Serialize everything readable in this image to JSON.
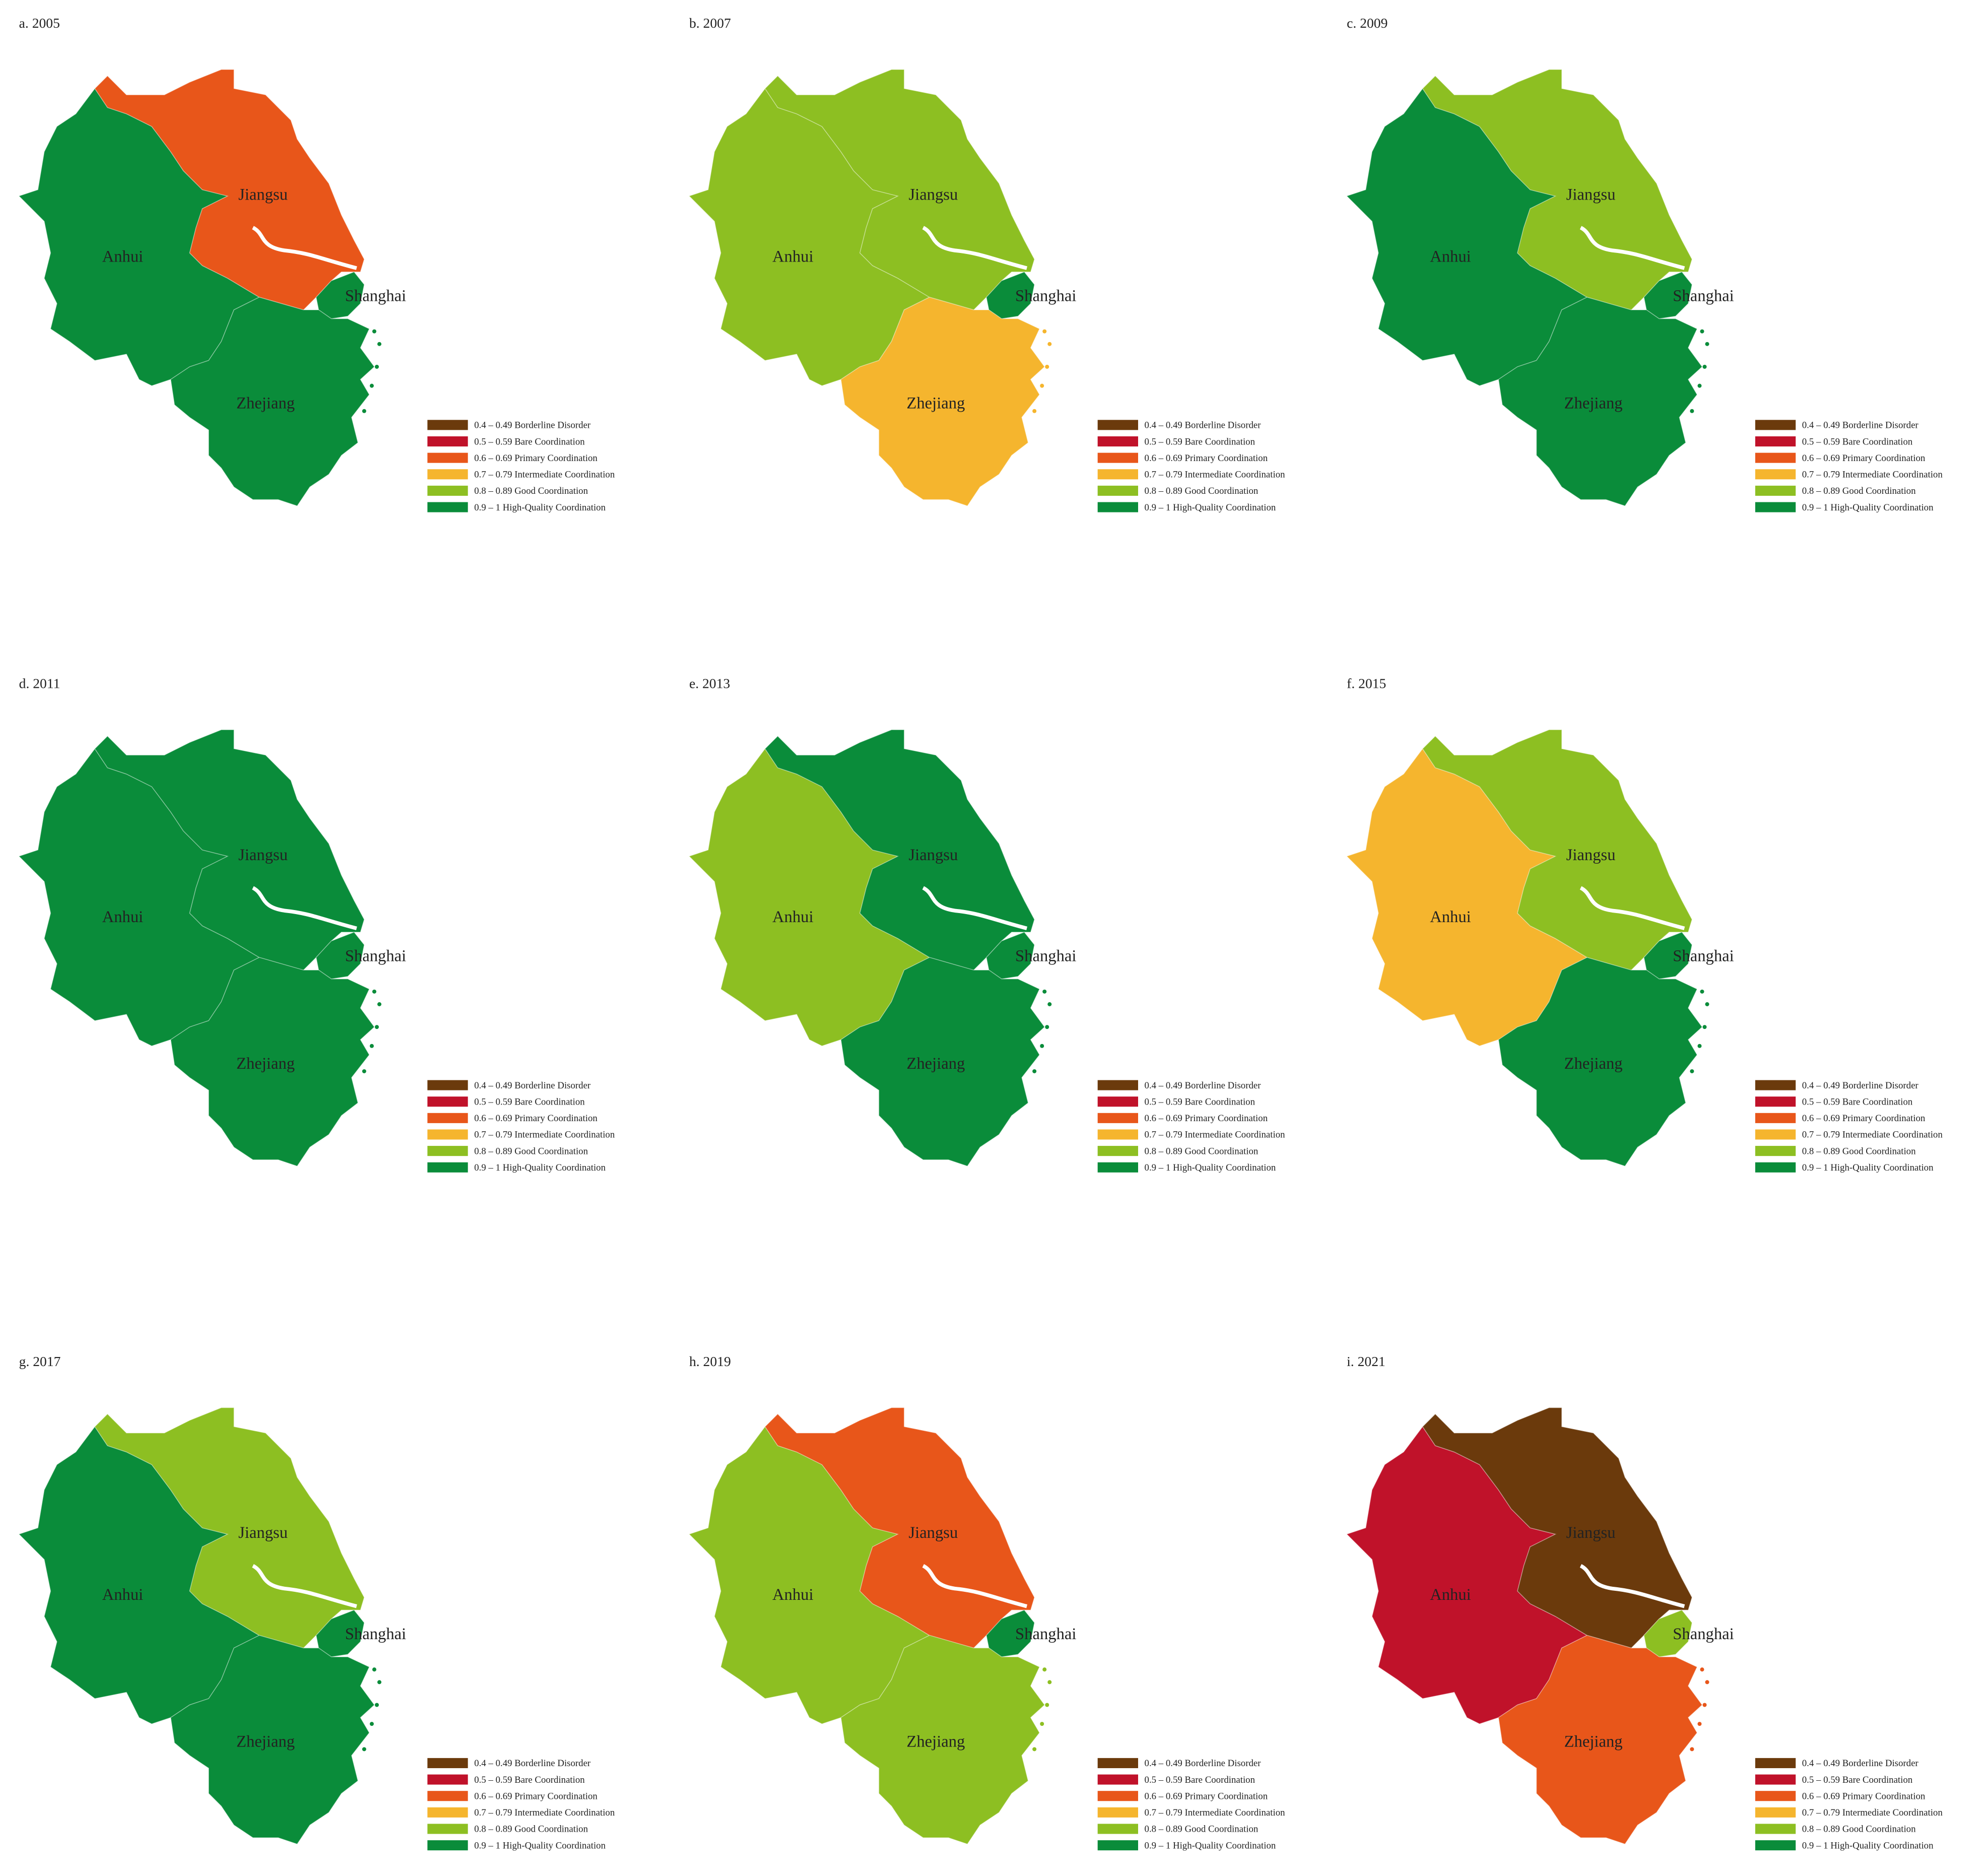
{
  "legend": [
    {
      "label": "0.4 – 0.49 Borderline Disorder",
      "color": "#6b3a0c"
    },
    {
      "label": "0.5 – 0.59 Bare Coordination",
      "color": "#c0122a"
    },
    {
      "label": "0.6 – 0.69 Primary Coordination",
      "color": "#e8561a"
    },
    {
      "label": "0.7 – 0.79 Intermediate Coordination",
      "color": "#f5b52e"
    },
    {
      "label": "0.8 – 0.89 Good Coordination",
      "color": "#8dbf22"
    },
    {
      "label": "0.9 – 1 High-Quality Coordination",
      "color": "#0a8c3a"
    }
  ],
  "panels": [
    {
      "title": "a. 2005",
      "regions": [
        {
          "name": "Anhui",
          "color": "#0a8c3a"
        },
        {
          "name": "Jiangsu",
          "color": "#e8561a"
        },
        {
          "name": "Shanghai",
          "color": "#0a8c3a"
        },
        {
          "name": "Zhejiang",
          "color": "#0a8c3a"
        }
      ]
    },
    {
      "title": "b. 2007",
      "regions": [
        {
          "name": "Anhui",
          "color": "#8dbf22"
        },
        {
          "name": "Jiangsu",
          "color": "#8dbf22"
        },
        {
          "name": "Shanghai",
          "color": "#0a8c3a"
        },
        {
          "name": "Zhejiang",
          "color": "#f5b52e"
        }
      ]
    },
    {
      "title": "c. 2009",
      "regions": [
        {
          "name": "Anhui",
          "color": "#0a8c3a"
        },
        {
          "name": "Jiangsu",
          "color": "#8dbf22"
        },
        {
          "name": "Shanghai",
          "color": "#0a8c3a"
        },
        {
          "name": "Zhejiang",
          "color": "#0a8c3a"
        }
      ]
    },
    {
      "title": "d. 2011",
      "regions": [
        {
          "name": "Anhui",
          "color": "#0a8c3a"
        },
        {
          "name": "Jiangsu",
          "color": "#0a8c3a"
        },
        {
          "name": "Shanghai",
          "color": "#0a8c3a"
        },
        {
          "name": "Zhejiang",
          "color": "#0a8c3a"
        }
      ]
    },
    {
      "title": "e. 2013",
      "regions": [
        {
          "name": "Anhui",
          "color": "#8dbf22"
        },
        {
          "name": "Jiangsu",
          "color": "#0a8c3a"
        },
        {
          "name": "Shanghai",
          "color": "#0a8c3a"
        },
        {
          "name": "Zhejiang",
          "color": "#0a8c3a"
        }
      ]
    },
    {
      "title": "f. 2015",
      "regions": [
        {
          "name": "Anhui",
          "color": "#f5b52e"
        },
        {
          "name": "Jiangsu",
          "color": "#8dbf22"
        },
        {
          "name": "Shanghai",
          "color": "#0a8c3a"
        },
        {
          "name": "Zhejiang",
          "color": "#0a8c3a"
        }
      ]
    },
    {
      "title": "g. 2017",
      "regions": [
        {
          "name": "Anhui",
          "color": "#0a8c3a"
        },
        {
          "name": "Jiangsu",
          "color": "#8dbf22"
        },
        {
          "name": "Shanghai",
          "color": "#0a8c3a"
        },
        {
          "name": "Zhejiang",
          "color": "#0a8c3a"
        }
      ]
    },
    {
      "title": "h. 2019",
      "regions": [
        {
          "name": "Anhui",
          "color": "#8dbf22"
        },
        {
          "name": "Jiangsu",
          "color": "#e8561a"
        },
        {
          "name": "Shanghai",
          "color": "#0a8c3a"
        },
        {
          "name": "Zhejiang",
          "color": "#8dbf22"
        }
      ]
    },
    {
      "title": "i. 2021",
      "regions": [
        {
          "name": "Anhui",
          "color": "#c0122a"
        },
        {
          "name": "Jiangsu",
          "color": "#6b3a0c"
        },
        {
          "name": "Shanghai",
          "color": "#8dbf22"
        },
        {
          "name": "Zhejiang",
          "color": "#e8561a"
        }
      ]
    }
  ]
}
